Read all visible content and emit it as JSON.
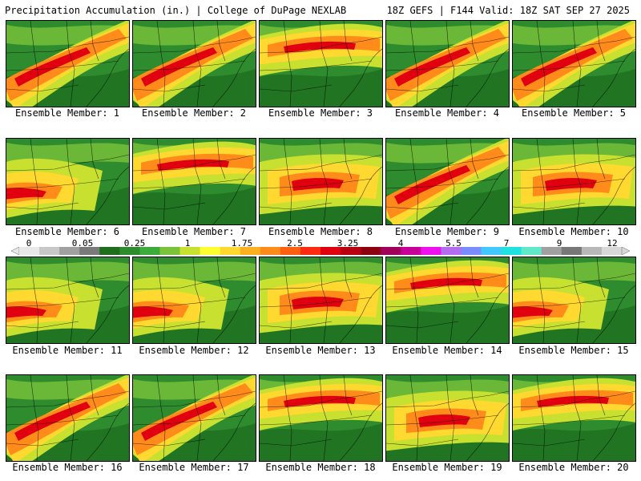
{
  "header": {
    "title_left": "Precipitation Accumulation (in.) | College of DuPage NEXLAB",
    "title_right": "18Z GEFS | F144 Valid: 18Z SAT SEP 27 2025"
  },
  "members": [
    {
      "label": "Ensemble Member: 1",
      "band": "sw-ne"
    },
    {
      "label": "Ensemble Member: 2",
      "band": "sw-ne"
    },
    {
      "label": "Ensemble Member: 3",
      "band": "north"
    },
    {
      "label": "Ensemble Member: 4",
      "band": "sw-ne"
    },
    {
      "label": "Ensemble Member: 5",
      "band": "sw-ne"
    },
    {
      "label": "Ensemble Member: 6",
      "band": "west"
    },
    {
      "label": "Ensemble Member: 7",
      "band": "north"
    },
    {
      "label": "Ensemble Member: 8",
      "band": "center"
    },
    {
      "label": "Ensemble Member: 9",
      "band": "sw-ne"
    },
    {
      "label": "Ensemble Member: 10",
      "band": "center"
    },
    {
      "label": "Ensemble Member: 11",
      "band": "west"
    },
    {
      "label": "Ensemble Member: 12",
      "band": "west"
    },
    {
      "label": "Ensemble Member: 13",
      "band": "center"
    },
    {
      "label": "Ensemble Member: 14",
      "band": "north"
    },
    {
      "label": "Ensemble Member: 15",
      "band": "west"
    },
    {
      "label": "Ensemble Member: 16",
      "band": "sw-ne"
    },
    {
      "label": "Ensemble Member: 17",
      "band": "sw-ne"
    },
    {
      "label": "Ensemble Member: 18",
      "band": "north"
    },
    {
      "label": "Ensemble Member: 19",
      "band": "center"
    },
    {
      "label": "Ensemble Member: 20",
      "band": "north"
    }
  ],
  "colorbar": {
    "ticks": [
      "0",
      "0.05",
      "0.25",
      "1",
      "1.75",
      "2.5",
      "3.25",
      "4",
      "5.5",
      "7",
      "9",
      "12"
    ],
    "colors": [
      "#e8e8e8",
      "#c8c8c8",
      "#a0a0a0",
      "#7a7a7a",
      "#1e6e1e",
      "#2e8b2e",
      "#3cab3c",
      "#7ac23a",
      "#c8e030",
      "#ffff30",
      "#ffd830",
      "#ffb020",
      "#ff8c1a",
      "#ff6010",
      "#ff2a10",
      "#e00010",
      "#b80010",
      "#8c0010",
      "#a0005a",
      "#c8009a",
      "#ee10ee",
      "#b46cf0",
      "#7a8cff",
      "#40c8ff",
      "#20e0e0",
      "#60e8c8",
      "#a0a0a0",
      "#787878",
      "#b8b8b8",
      "#d8d8d8"
    ]
  }
}
